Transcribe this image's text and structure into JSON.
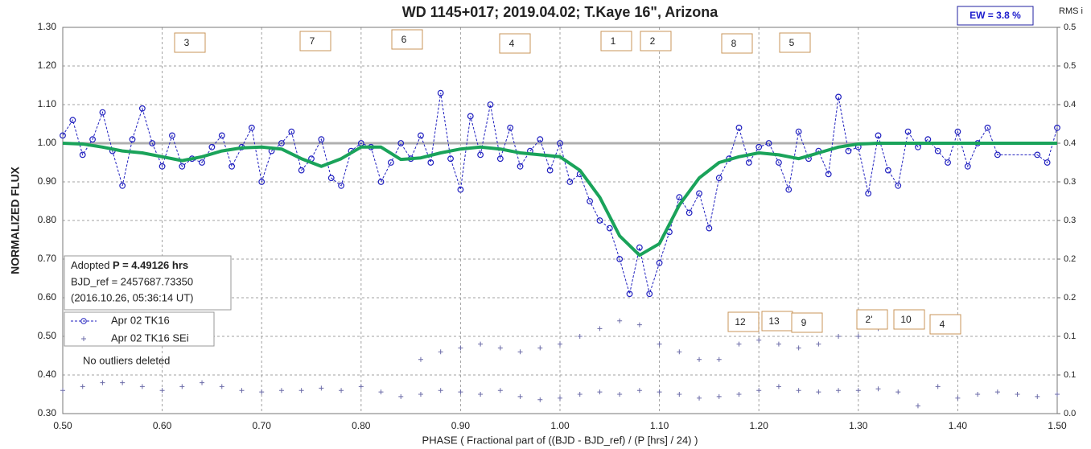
{
  "chart_data": {
    "type": "scatter",
    "title": "WD 1145+017; 2019.04.02; T.Kaye 16\", Arizona",
    "xlabel": "PHASE ( Fractional part of ((BJD - BJD_ref) / (P [hrs] / 24) )",
    "ylabel": "NORMALIZED FLUX",
    "y2label": "RMS i",
    "xlim": [
      0.5,
      1.5
    ],
    "xticks": [
      {
        "value": 0.5,
        "label": "0.50"
      },
      {
        "value": 0.6,
        "label": "0.60"
      },
      {
        "value": 0.7,
        "label": "0.70"
      },
      {
        "value": 0.8,
        "label": "0.80"
      },
      {
        "value": 0.9,
        "label": "0.90"
      },
      {
        "value": 1.0,
        "label": "1.00"
      },
      {
        "value": 1.1,
        "label": "1.10"
      },
      {
        "value": 1.2,
        "label": "1.20"
      },
      {
        "value": 1.3,
        "label": "1.30"
      },
      {
        "value": 1.4,
        "label": "1.40"
      },
      {
        "value": 1.5,
        "label": "1.50"
      }
    ],
    "ylim": [
      0.3,
      1.3
    ],
    "yticks": [
      {
        "value": 0.3,
        "label": "0.30"
      },
      {
        "value": 0.4,
        "label": "0.40"
      },
      {
        "value": 0.5,
        "label": "0.50"
      },
      {
        "value": 0.6,
        "label": "0.60"
      },
      {
        "value": 0.7,
        "label": "0.70"
      },
      {
        "value": 0.8,
        "label": "0.80"
      },
      {
        "value": 0.9,
        "label": "0.90"
      },
      {
        "value": 1.0,
        "label": "1.00"
      },
      {
        "value": 1.1,
        "label": "1.10"
      },
      {
        "value": 1.2,
        "label": "1.20"
      },
      {
        "value": 1.3,
        "label": "1.30"
      }
    ],
    "y2lim": [
      0,
      0.5
    ],
    "y2ticks": [
      {
        "value": 0,
        "label": "0.0"
      },
      {
        "value": 0.05,
        "label": "0.1"
      },
      {
        "value": 0.1,
        "label": "0.1"
      },
      {
        "value": 0.15,
        "label": "0.2"
      },
      {
        "value": 0.2,
        "label": "0.2"
      },
      {
        "value": 0.25,
        "label": "0.3"
      },
      {
        "value": 0.3,
        "label": "0.3"
      },
      {
        "value": 0.35,
        "label": "0.4"
      },
      {
        "value": 0.4,
        "label": "0.4"
      },
      {
        "value": 0.45,
        "label": "0.5"
      },
      {
        "value": 0.5,
        "label": "0.5"
      }
    ],
    "grid": true,
    "reference_line": 1.0,
    "series": [
      {
        "name": "Apr 02 TK16",
        "color": "#1f1fbf",
        "marker": "circle",
        "x": [
          0.5,
          0.51,
          0.52,
          0.53,
          0.54,
          0.55,
          0.56,
          0.57,
          0.58,
          0.59,
          0.6,
          0.61,
          0.62,
          0.63,
          0.64,
          0.65,
          0.66,
          0.67,
          0.68,
          0.69,
          0.7,
          0.71,
          0.72,
          0.73,
          0.74,
          0.75,
          0.76,
          0.77,
          0.78,
          0.79,
          0.8,
          0.81,
          0.82,
          0.83,
          0.84,
          0.85,
          0.86,
          0.87,
          0.88,
          0.89,
          0.9,
          0.91,
          0.92,
          0.93,
          0.94,
          0.95,
          0.96,
          0.97,
          0.98,
          0.99,
          1.0,
          1.01,
          1.02,
          1.03,
          1.04,
          1.05,
          1.06,
          1.07,
          1.08,
          1.09,
          1.1,
          1.11,
          1.12,
          1.13,
          1.14,
          1.15,
          1.16,
          1.17,
          1.18,
          1.19,
          1.2,
          1.21,
          1.22,
          1.23,
          1.24,
          1.25,
          1.26,
          1.27,
          1.28,
          1.29,
          1.3,
          1.31,
          1.32,
          1.33,
          1.34,
          1.35,
          1.36,
          1.37,
          1.38,
          1.39,
          1.4,
          1.41,
          1.42,
          1.43,
          1.44,
          1.48,
          1.49,
          1.5
        ],
        "values": [
          1.02,
          1.06,
          0.97,
          1.01,
          1.08,
          0.98,
          0.89,
          1.01,
          1.09,
          1.0,
          0.94,
          1.02,
          0.94,
          0.96,
          0.95,
          0.99,
          1.02,
          0.94,
          0.99,
          1.04,
          0.9,
          0.98,
          1.0,
          1.03,
          0.93,
          0.96,
          1.01,
          0.91,
          0.89,
          0.98,
          1.0,
          0.99,
          0.9,
          0.95,
          1.0,
          0.96,
          1.02,
          0.95,
          1.13,
          0.96,
          0.88,
          1.07,
          0.97,
          1.1,
          0.96,
          1.04,
          0.94,
          0.98,
          1.01,
          0.93,
          1.0,
          0.9,
          0.92,
          0.85,
          0.8,
          0.78,
          0.7,
          0.61,
          0.73,
          0.61,
          0.69,
          0.77,
          0.86,
          0.82,
          0.87,
          0.78,
          0.91,
          0.96,
          1.04,
          0.95,
          0.99,
          1.0,
          0.95,
          0.88,
          1.03,
          0.96,
          0.98,
          0.92,
          1.12,
          0.98,
          0.99,
          0.87,
          1.02,
          0.93,
          0.89,
          1.03,
          0.99,
          1.01,
          0.98,
          0.95,
          1.03,
          0.94,
          1.0,
          1.04,
          0.97,
          0.97,
          0.95,
          1.04
        ]
      },
      {
        "name": "Apr 02 TK16 SEi",
        "color": "#6b6ba8",
        "marker": "plus",
        "axis": "y2",
        "x": [
          0.5,
          0.52,
          0.54,
          0.56,
          0.58,
          0.6,
          0.62,
          0.64,
          0.66,
          0.68,
          0.7,
          0.72,
          0.74,
          0.76,
          0.78,
          0.8,
          0.82,
          0.84,
          0.86,
          0.88,
          0.9,
          0.92,
          0.94,
          0.96,
          0.98,
          1.0,
          1.02,
          1.04,
          1.06,
          1.08,
          1.1,
          1.12,
          1.14,
          1.16,
          1.18,
          1.2,
          1.22,
          1.24,
          1.26,
          1.28,
          1.3,
          1.32,
          1.34,
          1.36,
          1.38,
          1.4,
          1.42,
          1.44,
          1.46,
          1.48,
          1.5,
          0.86,
          0.88,
          0.9,
          0.92,
          0.94,
          0.96,
          0.98,
          1.0,
          1.02,
          1.04,
          1.06,
          1.08,
          1.1,
          1.12,
          1.14,
          1.16,
          1.18,
          1.2,
          1.22,
          1.24,
          1.26,
          1.28,
          1.3,
          1.32
        ],
        "values": [
          0.03,
          0.035,
          0.04,
          0.04,
          0.035,
          0.03,
          0.035,
          0.04,
          0.035,
          0.03,
          0.028,
          0.03,
          0.03,
          0.033,
          0.03,
          0.035,
          0.028,
          0.022,
          0.025,
          0.03,
          0.028,
          0.025,
          0.03,
          0.022,
          0.018,
          0.02,
          0.025,
          0.028,
          0.025,
          0.03,
          0.028,
          0.025,
          0.02,
          0.022,
          0.025,
          0.03,
          0.035,
          0.03,
          0.028,
          0.03,
          0.03,
          0.032,
          0.028,
          0.01,
          0.035,
          0.02,
          0.025,
          0.028,
          0.025,
          0.022,
          0.025,
          0.07,
          0.08,
          0.085,
          0.09,
          0.085,
          0.08,
          0.085,
          0.09,
          0.1,
          0.11,
          0.12,
          0.115,
          0.09,
          0.08,
          0.07,
          0.07,
          0.09,
          0.095,
          0.09,
          0.085,
          0.09,
          0.1,
          0.1,
          0.11
        ]
      },
      {
        "color": "#1aa35a",
        "marker": "line",
        "x": [
          0.5,
          0.52,
          0.54,
          0.56,
          0.58,
          0.6,
          0.62,
          0.64,
          0.66,
          0.68,
          0.7,
          0.72,
          0.74,
          0.76,
          0.78,
          0.8,
          0.82,
          0.84,
          0.86,
          0.88,
          0.9,
          0.92,
          0.94,
          0.96,
          0.98,
          1.0,
          1.02,
          1.04,
          1.06,
          1.08,
          1.1,
          1.12,
          1.14,
          1.16,
          1.18,
          1.2,
          1.22,
          1.24,
          1.26,
          1.28,
          1.3,
          1.32,
          1.34,
          1.36,
          1.38,
          1.4,
          1.42,
          1.44,
          1.46,
          1.48,
          1.5
        ],
        "values": [
          1.0,
          0.998,
          0.99,
          0.98,
          0.975,
          0.965,
          0.955,
          0.965,
          0.98,
          0.988,
          0.99,
          0.985,
          0.96,
          0.94,
          0.96,
          0.99,
          0.99,
          0.958,
          0.962,
          0.975,
          0.985,
          0.99,
          0.985,
          0.975,
          0.97,
          0.965,
          0.93,
          0.86,
          0.76,
          0.71,
          0.74,
          0.84,
          0.91,
          0.95,
          0.965,
          0.975,
          0.97,
          0.96,
          0.975,
          0.99,
          0.998,
          1.0,
          1.0,
          1.0,
          1.0,
          1.0,
          1.0,
          1.0,
          1.0,
          1.0,
          1.0
        ]
      }
    ],
    "annotations": [
      "3",
      "7",
      "6",
      "4",
      "1",
      "2",
      "8",
      "5",
      "12",
      "13",
      "9",
      "2'",
      "10",
      "4"
    ],
    "info": {
      "prefix": "Adopted ",
      "period": "P = 4.49126 hrs",
      "bjd": "BJD_ref = 2457687.73350",
      "date": "(2016.10.26, 05:36:14 UT)"
    },
    "note": "No outliers deleted",
    "ew": "EW =  3.8 %"
  }
}
